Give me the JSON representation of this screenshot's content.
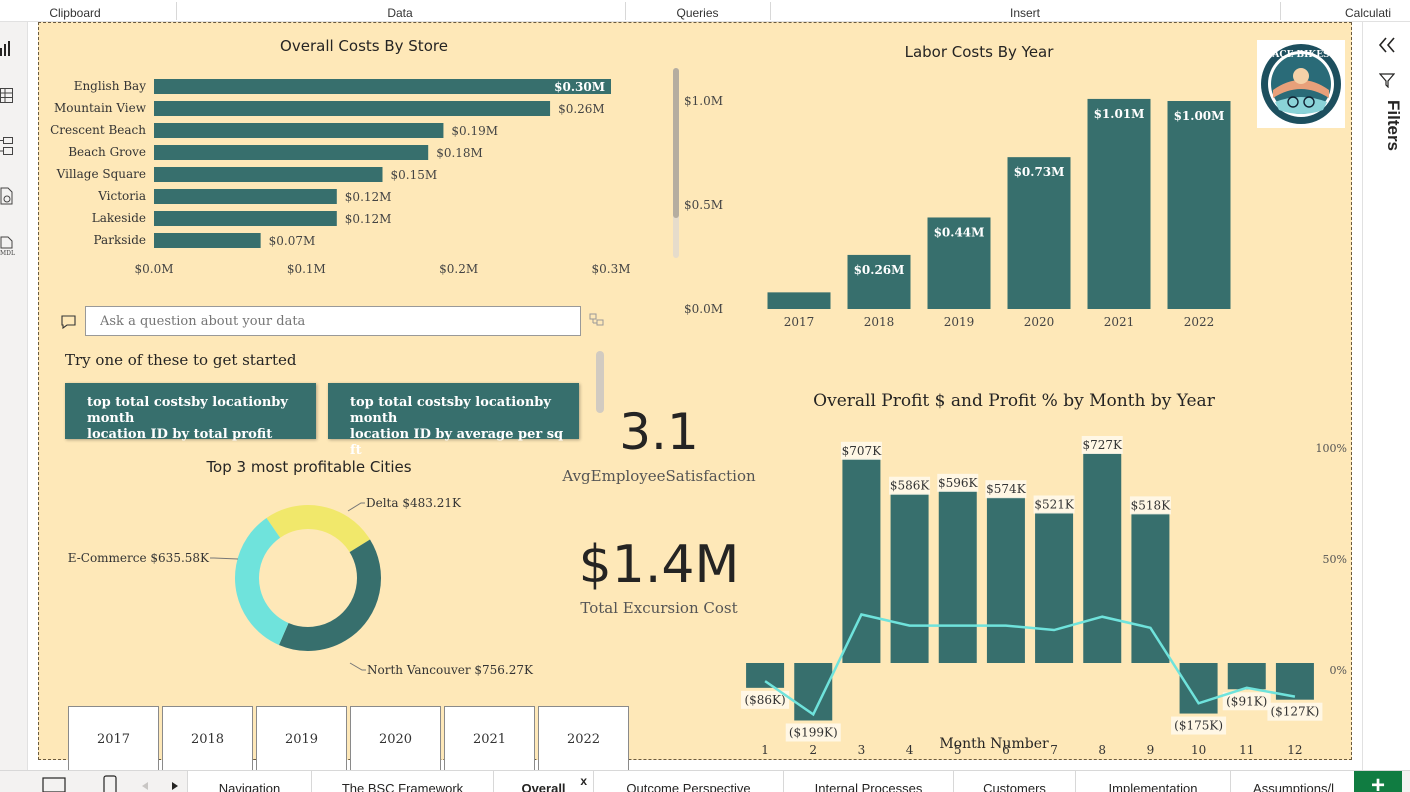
{
  "ribbon": {
    "groups": [
      "Clipboard",
      "Data",
      "Queries",
      "Insert",
      "Calculati"
    ]
  },
  "leftbar": {
    "icons": [
      "report-view-icon",
      "table-view-icon",
      "model-view-icon",
      "dax-query-icon",
      "tmdl-view-icon"
    ]
  },
  "right_panel": {
    "collapse_label": "«",
    "filters_label": "Filters"
  },
  "store_chart": {
    "title": "Overall Costs By Store"
  },
  "labor_chart": {
    "title": "Labor Costs By Year"
  },
  "qa": {
    "placeholder": "Ask a question about your data",
    "prompt": "Try one of these to get started",
    "suggestions": [
      {
        "line1": "top total costsby locationby month",
        "line2": "location ID by total profit"
      },
      {
        "line1": "top total costsby locationby month",
        "line2": "location ID by average per sq ft"
      }
    ]
  },
  "cities_chart": {
    "title": "Top 3 most profitable Cities"
  },
  "kpis": {
    "satisfaction_value": "3.1",
    "satisfaction_label": "AvgEmployeeSatisfaction",
    "excursion_value": "$1.4M",
    "excursion_label": "Total Excursion Cost"
  },
  "profit_chart": {
    "title": "Overall Profit $ and Profit % by Month by Year",
    "xlabel": "Month Number"
  },
  "year_slicer": [
    "2017",
    "2018",
    "2019",
    "2020",
    "2021",
    "2022"
  ],
  "logo": {
    "text": "ACE BIKES"
  },
  "page_tabs": {
    "items": [
      "Navigation",
      "The BSC Framework",
      "Overall",
      "Outcome Perspective",
      "Internal Processes",
      "Customers",
      "Implementation",
      "Assumptions/l"
    ],
    "active": "Overall",
    "close_label": "x",
    "add_label": "+"
  },
  "colors": {
    "page_bg": "#fee8b8",
    "bar": "#376f6d",
    "line": "#6fe3dc",
    "yellow": "#f1e86b"
  },
  "chart_data": [
    {
      "type": "bar",
      "orientation": "horizontal",
      "title": "Overall Costs By Store",
      "categories": [
        "English Bay",
        "Mountain View",
        "Crescent Beach",
        "Beach Grove",
        "Village Square",
        "Victoria",
        "Lakeside",
        "Parkside"
      ],
      "values": [
        0.3,
        0.26,
        0.19,
        0.18,
        0.15,
        0.12,
        0.12,
        0.07
      ],
      "data_labels": [
        "$0.30M",
        "$0.26M",
        "$0.19M",
        "$0.18M",
        "$0.15M",
        "$0.12M",
        "$0.12M",
        "$0.07M"
      ],
      "xticks": [
        "$0.0M",
        "$0.1M",
        "$0.2M",
        "$0.3M"
      ],
      "xlim": [
        0,
        0.3
      ]
    },
    {
      "type": "bar",
      "title": "Labor Costs By Year",
      "categories": [
        "2017",
        "2018",
        "2019",
        "2020",
        "2021",
        "2022"
      ],
      "values": [
        0.08,
        0.26,
        0.44,
        0.73,
        1.01,
        1.0
      ],
      "data_labels": [
        "",
        "$0.26M",
        "$0.44M",
        "$0.73M",
        "$1.01M",
        "$1.00M"
      ],
      "yticks": [
        "$0.0M",
        "$0.5M",
        "$1.0M"
      ],
      "ylim": [
        0,
        1.0
      ]
    },
    {
      "type": "pie",
      "title": "Top 3 most profitable Cities",
      "labels": [
        "Delta",
        "North Vancouver",
        "E-Commerce"
      ],
      "values": [
        483.21,
        756.27,
        635.58
      ],
      "data_labels": [
        "Delta $483.21K",
        "North Vancouver $756.27K",
        "E-Commerce $635.58K"
      ],
      "colors": [
        "#f1e86b",
        "#376f6d",
        "#6fe3dc"
      ]
    },
    {
      "type": "bar",
      "title": "Overall Profit $ and Profit % by Month by Year",
      "xlabel": "Month Number",
      "categories": [
        "1",
        "2",
        "3",
        "4",
        "5",
        "6",
        "7",
        "8",
        "9",
        "10",
        "11",
        "12"
      ],
      "series": [
        {
          "type": "bar",
          "values": [
            -86,
            -199,
            707,
            586,
            596,
            574,
            521,
            727,
            518,
            -175,
            -91,
            -127
          ],
          "data_labels": [
            "($86K)",
            "($199K)",
            "$707K",
            "$586K",
            "$596K",
            "$574K",
            "$521K",
            "$727K",
            "$518K",
            "($175K)",
            "($91K)",
            "($127K)"
          ]
        },
        {
          "type": "line",
          "values": [
            -5,
            -20,
            25,
            20,
            20,
            20,
            18,
            24,
            19,
            -15,
            -8,
            -12
          ]
        }
      ],
      "y_bar_range": [
        -199,
        727
      ],
      "y2ticks": [
        "100%",
        "50%",
        "0%"
      ],
      "y2lim": [
        -25,
        100
      ]
    }
  ]
}
